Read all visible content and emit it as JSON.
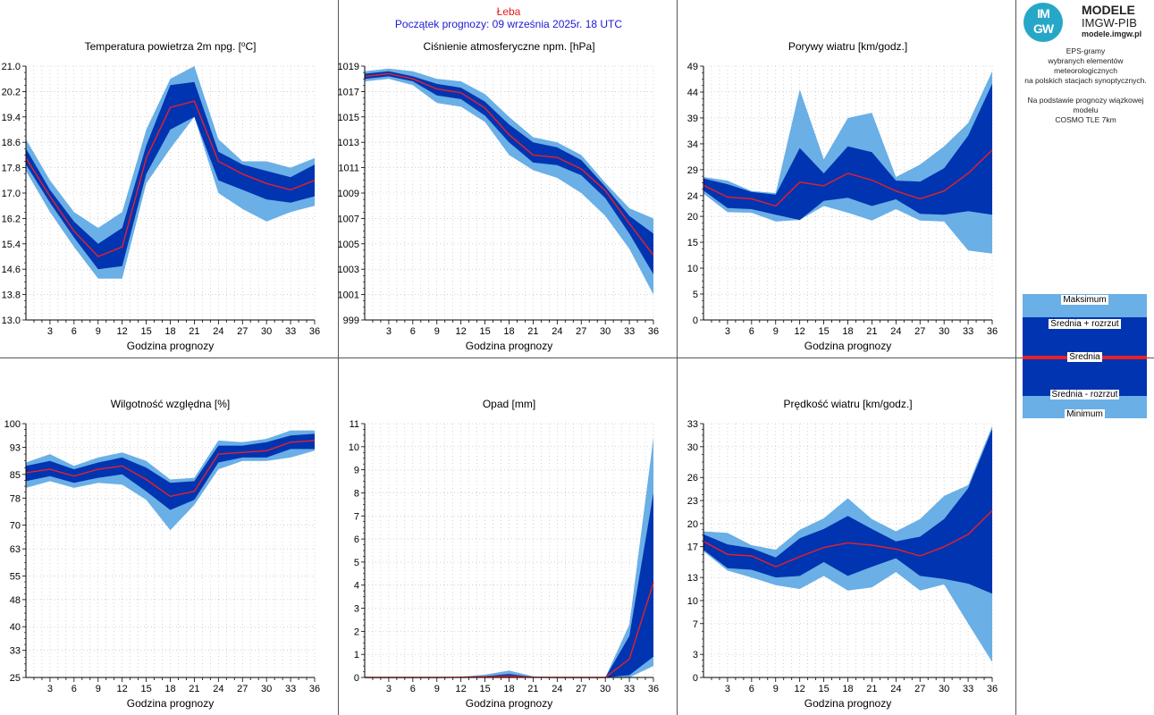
{
  "header": {
    "station": "Łeba",
    "forecast_start": "Początek prognozy: 09 września 2025r. 18 UTC"
  },
  "logo": {
    "abbr_top": "IM",
    "abbr_bottom": "GW",
    "line1": "MODELE",
    "line2": "IMGW-PIB",
    "line3": "modele.imgw.pl"
  },
  "info": {
    "line1": "EPS-gramy",
    "line2": "wybranych elementów meteorologicznych",
    "line3": "na polskich stacjach  synoptycznych.",
    "line4": "Na podstawie prognozy wiązkowej modelu",
    "line5": "COSMO TLE 7km"
  },
  "legend": {
    "max": "Maksimum",
    "mean_plus": "Średnia + rozrzut",
    "mean": "Średnia",
    "mean_minus": "Średnia - rozrzut",
    "min": "Minimum"
  },
  "colors": {
    "outer_band": "#6aafe6",
    "inner_band": "#0034b0",
    "mean_line": "#e8202a",
    "station": "#e31b1b",
    "start": "#1a1ad6",
    "logo": "#27a7c7"
  },
  "chart_data": [
    {
      "type": "area",
      "title": "Temperatura powietrza 2m npg. [°C]",
      "xlabel": "Godzina prognozy",
      "ylabel": "",
      "x": [
        0,
        3,
        6,
        9,
        12,
        15,
        18,
        21,
        24,
        27,
        30,
        33,
        36
      ],
      "xticks": [
        3,
        6,
        9,
        12,
        15,
        18,
        21,
        24,
        27,
        30,
        33,
        36
      ],
      "ylim": [
        13.0,
        21.0
      ],
      "yticks": [
        "13.0",
        "13.8",
        "14.6",
        "15.4",
        "16.2",
        "17.0",
        "17.8",
        "18.6",
        "19.4",
        "20.2",
        "21.0"
      ],
      "max": [
        18.7,
        17.4,
        16.4,
        15.9,
        16.4,
        19.0,
        20.6,
        21.0,
        18.7,
        18.0,
        18.0,
        17.8,
        18.1
      ],
      "mean_plus": [
        18.4,
        17.1,
        16.1,
        15.4,
        15.9,
        18.5,
        20.4,
        20.5,
        18.3,
        17.9,
        17.7,
        17.5,
        17.9
      ],
      "mean": [
        18.1,
        16.9,
        15.8,
        15.0,
        15.3,
        18.1,
        19.7,
        19.9,
        18.0,
        17.6,
        17.3,
        17.1,
        17.4
      ],
      "mean_minus": [
        17.9,
        16.7,
        15.6,
        14.6,
        14.7,
        17.6,
        19.0,
        19.4,
        17.4,
        17.1,
        16.8,
        16.7,
        16.9
      ],
      "min": [
        17.7,
        16.4,
        15.3,
        14.3,
        14.3,
        17.3,
        18.4,
        19.4,
        17.0,
        16.5,
        16.1,
        16.4,
        16.6
      ],
      "grid": true
    },
    {
      "type": "area",
      "title": "Ciśnienie atmosferyczne npm. [hPa]",
      "xlabel": "Godzina prognozy",
      "ylabel": "",
      "x": [
        0,
        3,
        6,
        9,
        12,
        15,
        18,
        21,
        24,
        27,
        30,
        33,
        36
      ],
      "xticks": [
        3,
        6,
        9,
        12,
        15,
        18,
        21,
        24,
        27,
        30,
        33,
        36
      ],
      "ylim": [
        999,
        1019
      ],
      "yticks": [
        "999",
        "1001",
        "1003",
        "1005",
        "1007",
        "1009",
        "1011",
        "1013",
        "1015",
        "1017",
        "1019"
      ],
      "max": [
        1018.6,
        1018.8,
        1018.6,
        1018.0,
        1017.8,
        1016.8,
        1015.0,
        1013.4,
        1013.0,
        1012.0,
        1009.8,
        1007.8,
        1007.0
      ],
      "mean_plus": [
        1018.4,
        1018.6,
        1018.2,
        1017.6,
        1017.3,
        1016.2,
        1014.4,
        1013.0,
        1012.6,
        1011.6,
        1009.5,
        1007.2,
        1005.8
      ],
      "mean": [
        1018.2,
        1018.4,
        1018.0,
        1017.2,
        1016.9,
        1015.7,
        1013.6,
        1012.0,
        1011.8,
        1010.9,
        1009.2,
        1006.6,
        1004.1
      ],
      "mean_minus": [
        1018.0,
        1018.2,
        1017.8,
        1016.7,
        1016.4,
        1015.1,
        1013.0,
        1011.4,
        1011.2,
        1010.4,
        1008.6,
        1005.8,
        1002.6
      ],
      "min": [
        1017.8,
        1018.0,
        1017.5,
        1016.1,
        1015.8,
        1014.6,
        1012.0,
        1010.8,
        1010.2,
        1009.0,
        1007.2,
        1004.6,
        1001.0
      ],
      "grid": true
    },
    {
      "type": "area",
      "title": "Porywy wiatru [km/godz.]",
      "xlabel": "Godzina prognozy",
      "ylabel": "",
      "x": [
        0,
        3,
        6,
        9,
        12,
        15,
        18,
        21,
        24,
        27,
        30,
        33,
        36
      ],
      "xticks": [
        3,
        6,
        9,
        12,
        15,
        18,
        21,
        24,
        27,
        30,
        33,
        36
      ],
      "ylim": [
        0,
        49
      ],
      "yticks": [
        "0",
        "5",
        "10",
        "15",
        "20",
        "24",
        "29",
        "34",
        "39",
        "44",
        "49"
      ],
      "max": [
        27.6,
        26.9,
        24.9,
        24.5,
        44.5,
        31.0,
        39.0,
        40.0,
        27.6,
        30.0,
        33.5,
        38.0,
        48.0
      ],
      "mean_plus": [
        27.3,
        26.2,
        24.7,
        24.2,
        33.2,
        28.3,
        33.5,
        32.4,
        26.9,
        26.7,
        29.3,
        35.6,
        45.6
      ],
      "mean": [
        26.0,
        23.7,
        23.4,
        22.0,
        26.6,
        25.9,
        28.3,
        27.0,
        24.9,
        23.4,
        24.9,
        28.3,
        32.8
      ],
      "mean_minus": [
        25.0,
        21.6,
        21.4,
        20.3,
        19.3,
        23.0,
        23.6,
        22.0,
        23.3,
        20.5,
        20.3,
        21.0,
        20.3
      ],
      "min": [
        24.4,
        20.8,
        20.7,
        19.0,
        19.3,
        22.0,
        20.7,
        19.2,
        21.4,
        19.2,
        19.0,
        13.4,
        12.8
      ],
      "grid": true
    },
    {
      "type": "area",
      "title": "Wilgotność względna [%]",
      "xlabel": "Godzina prognozy",
      "ylabel": "",
      "x": [
        0,
        3,
        6,
        9,
        12,
        15,
        18,
        21,
        24,
        27,
        30,
        33,
        36
      ],
      "xticks": [
        3,
        6,
        9,
        12,
        15,
        18,
        21,
        24,
        27,
        30,
        33,
        36
      ],
      "ylim": [
        25,
        100
      ],
      "yticks": [
        "25",
        "33",
        "40",
        "48",
        "55",
        "63",
        "70",
        "78",
        "85",
        "93",
        "100"
      ],
      "max": [
        88.5,
        91.0,
        87.5,
        90.0,
        91.5,
        89.0,
        83.5,
        84.0,
        95.0,
        94.5,
        95.5,
        98.0,
        98.0
      ],
      "mean_plus": [
        87.5,
        89.0,
        86.5,
        88.5,
        90.0,
        87.0,
        82.5,
        83.0,
        93.5,
        93.5,
        94.5,
        96.5,
        97.0
      ],
      "mean": [
        85.5,
        86.5,
        84.5,
        86.5,
        87.5,
        83.5,
        78.5,
        80.0,
        91.0,
        91.5,
        92.0,
        94.5,
        95.0
      ],
      "mean_minus": [
        83.0,
        84.5,
        82.5,
        84.0,
        85.0,
        80.0,
        74.5,
        77.5,
        88.5,
        90.0,
        90.0,
        92.5,
        92.5
      ],
      "min": [
        81.0,
        83.0,
        81.0,
        82.5,
        82.0,
        77.5,
        68.5,
        76.0,
        86.5,
        89.0,
        89.0,
        90.0,
        92.0
      ],
      "grid": true
    },
    {
      "type": "area",
      "title": "Opad [mm]",
      "xlabel": "Godzina prognozy",
      "ylabel": "",
      "x": [
        0,
        3,
        6,
        9,
        12,
        15,
        18,
        21,
        24,
        27,
        30,
        33,
        36
      ],
      "xticks": [
        3,
        6,
        9,
        12,
        15,
        18,
        21,
        24,
        27,
        30,
        33,
        36
      ],
      "ylim": [
        0,
        11
      ],
      "yticks": [
        "0",
        "1",
        "2",
        "3",
        "4",
        "5",
        "6",
        "7",
        "8",
        "9",
        "10",
        "11"
      ],
      "max": [
        0,
        0,
        0,
        0,
        0.03,
        0.12,
        0.3,
        0.05,
        0,
        0,
        0,
        2.3,
        10.4
      ],
      "mean_plus": [
        0,
        0,
        0,
        0,
        0.02,
        0.06,
        0.15,
        0.02,
        0,
        0,
        0,
        1.8,
        8.0
      ],
      "mean": [
        0,
        0,
        0,
        0,
        0.01,
        0.03,
        0.06,
        0.01,
        0,
        0,
        0,
        0.8,
        4.1
      ],
      "mean_minus": [
        0,
        0,
        0,
        0,
        0,
        0,
        0,
        0,
        0,
        0,
        0,
        0.1,
        0.9
      ],
      "min": [
        0,
        0,
        0,
        0,
        0,
        0,
        0,
        0,
        0,
        0,
        0,
        0,
        0.5
      ],
      "grid": true
    },
    {
      "type": "area",
      "title": "Prędkość wiatru [km/godz.]",
      "xlabel": "Godzina prognozy",
      "ylabel": "",
      "x": [
        0,
        3,
        6,
        9,
        12,
        15,
        18,
        21,
        24,
        27,
        30,
        33,
        36
      ],
      "xticks": [
        3,
        6,
        9,
        12,
        15,
        18,
        21,
        24,
        27,
        30,
        33,
        36
      ],
      "ylim": [
        0,
        33
      ],
      "yticks": [
        "0",
        "3",
        "7",
        "10",
        "13",
        "17",
        "20",
        "23",
        "26",
        "30",
        "33"
      ],
      "max": [
        19.0,
        18.8,
        17.2,
        16.6,
        19.2,
        20.7,
        23.3,
        20.6,
        19.0,
        20.6,
        23.6,
        25.0,
        32.7
      ],
      "mean_plus": [
        18.6,
        17.3,
        16.8,
        15.6,
        18.1,
        19.3,
        21.0,
        19.3,
        17.7,
        18.3,
        20.6,
        24.6,
        32.3
      ],
      "mean": [
        17.7,
        16.0,
        15.8,
        14.4,
        15.7,
        16.9,
        17.5,
        17.2,
        16.7,
        15.8,
        17.0,
        18.6,
        21.7
      ],
      "mean_minus": [
        16.6,
        14.2,
        14.0,
        13.0,
        13.2,
        15.0,
        13.2,
        14.4,
        15.5,
        13.2,
        12.8,
        12.2,
        10.9
      ],
      "min": [
        16.4,
        13.9,
        13.0,
        12.0,
        11.5,
        13.2,
        11.3,
        11.7,
        13.7,
        11.3,
        12.1,
        7.0,
        2.0
      ],
      "grid": true
    }
  ]
}
